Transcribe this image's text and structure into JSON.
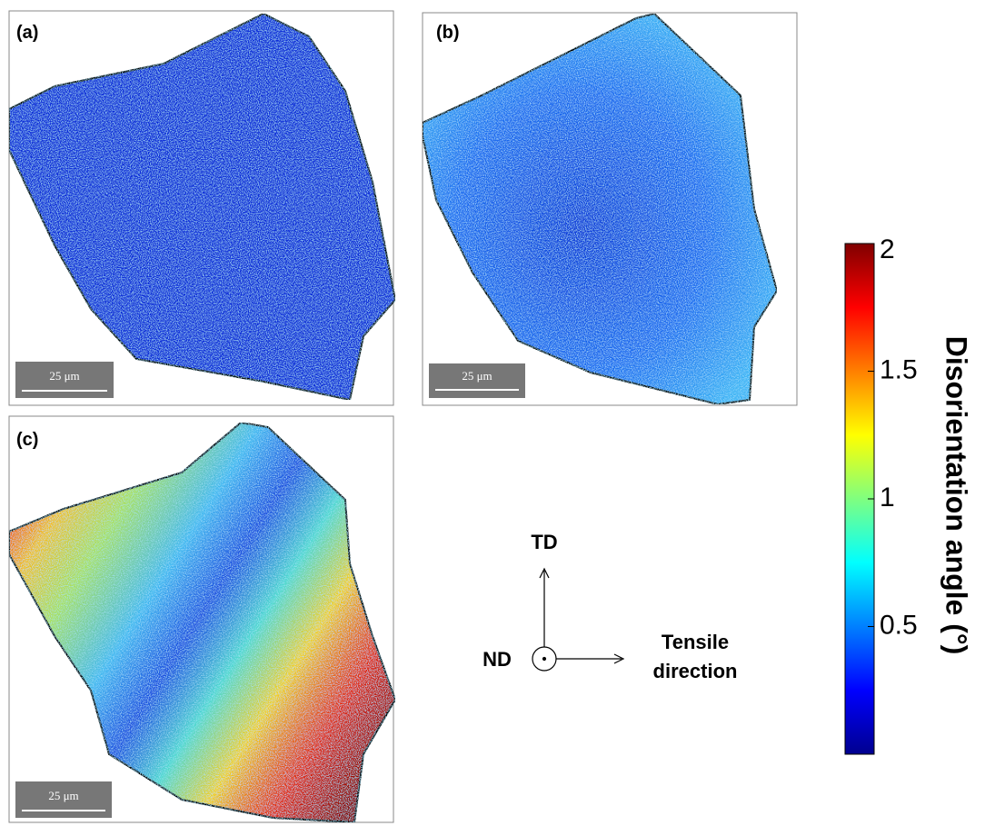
{
  "panels": [
    {
      "label": "(a)",
      "scale_bar": "25 μm"
    },
    {
      "label": "(b)",
      "scale_bar": "25 μm"
    },
    {
      "label": "(c)",
      "scale_bar": "25 μm"
    }
  ],
  "axes": {
    "td": "TD",
    "nd": "ND",
    "tensile": [
      "Tensile",
      "direction"
    ]
  },
  "colorbar": {
    "label": "Disorientation angle (°)",
    "range": [
      0,
      2
    ],
    "ticks": [
      0.5,
      1,
      1.5,
      2
    ]
  }
}
